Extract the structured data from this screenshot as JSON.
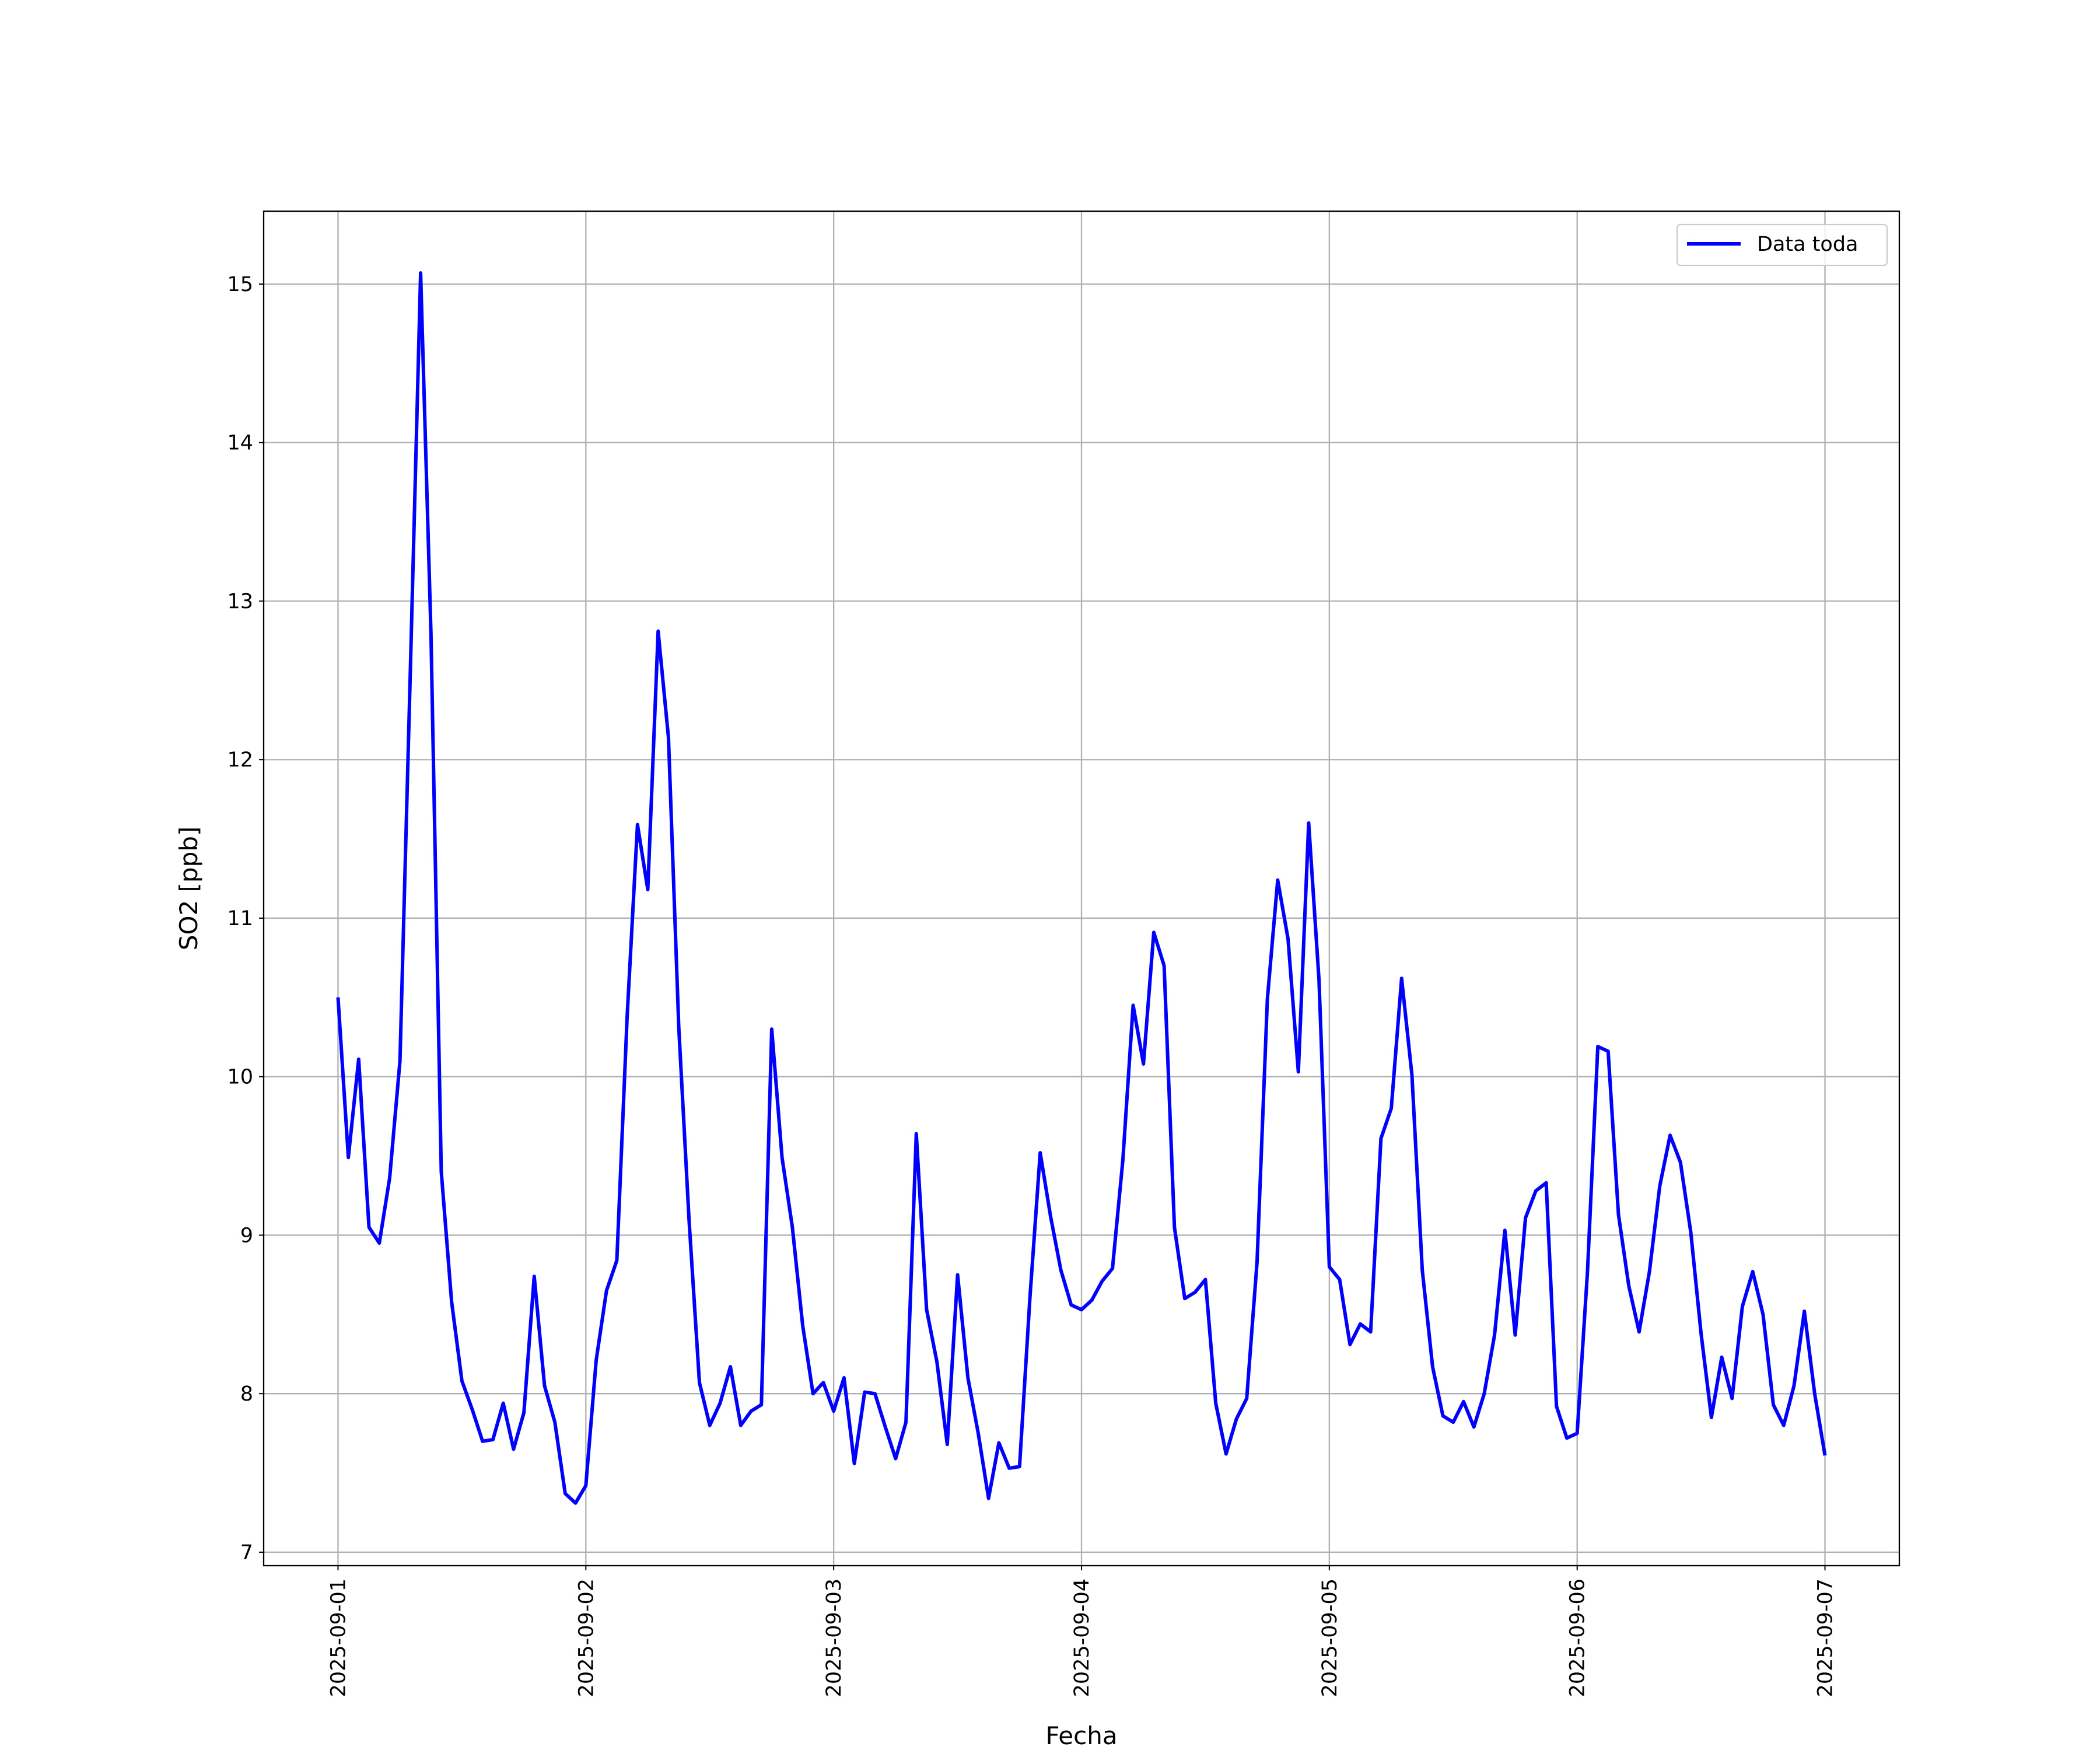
{
  "chart_data": {
    "type": "line",
    "title": null,
    "x_label": "Fecha",
    "y_label": "SO2 [ppb]",
    "x": [
      "2025-09-01 00:00",
      "2025-09-01 01:00",
      "2025-09-01 02:00",
      "2025-09-01 03:00",
      "2025-09-01 04:00",
      "2025-09-01 05:00",
      "2025-09-01 06:00",
      "2025-09-01 07:00",
      "2025-09-01 08:00",
      "2025-09-01 09:00",
      "2025-09-01 10:00",
      "2025-09-01 11:00",
      "2025-09-01 12:00",
      "2025-09-01 13:00",
      "2025-09-01 14:00",
      "2025-09-01 15:00",
      "2025-09-01 16:00",
      "2025-09-01 17:00",
      "2025-09-01 18:00",
      "2025-09-01 19:00",
      "2025-09-01 20:00",
      "2025-09-01 21:00",
      "2025-09-01 22:00",
      "2025-09-01 23:00",
      "2025-09-02 00:00",
      "2025-09-02 01:00",
      "2025-09-02 02:00",
      "2025-09-02 03:00",
      "2025-09-02 04:00",
      "2025-09-02 05:00",
      "2025-09-02 06:00",
      "2025-09-02 07:00",
      "2025-09-02 08:00",
      "2025-09-02 09:00",
      "2025-09-02 10:00",
      "2025-09-02 11:00",
      "2025-09-02 12:00",
      "2025-09-02 13:00",
      "2025-09-02 14:00",
      "2025-09-02 15:00",
      "2025-09-02 16:00",
      "2025-09-02 17:00",
      "2025-09-02 18:00",
      "2025-09-02 19:00",
      "2025-09-02 20:00",
      "2025-09-02 21:00",
      "2025-09-02 22:00",
      "2025-09-02 23:00",
      "2025-09-03 00:00",
      "2025-09-03 01:00",
      "2025-09-03 02:00",
      "2025-09-03 03:00",
      "2025-09-03 04:00",
      "2025-09-03 05:00",
      "2025-09-03 06:00",
      "2025-09-03 07:00",
      "2025-09-03 08:00",
      "2025-09-03 09:00",
      "2025-09-03 10:00",
      "2025-09-03 11:00",
      "2025-09-03 12:00",
      "2025-09-03 13:00",
      "2025-09-03 14:00",
      "2025-09-03 15:00",
      "2025-09-03 16:00",
      "2025-09-03 17:00",
      "2025-09-03 18:00",
      "2025-09-03 19:00",
      "2025-09-03 20:00",
      "2025-09-03 21:00",
      "2025-09-03 22:00",
      "2025-09-03 23:00",
      "2025-09-04 00:00",
      "2025-09-04 01:00",
      "2025-09-04 02:00",
      "2025-09-04 03:00",
      "2025-09-04 04:00",
      "2025-09-04 05:00",
      "2025-09-04 06:00",
      "2025-09-04 07:00",
      "2025-09-04 08:00",
      "2025-09-04 09:00",
      "2025-09-04 10:00",
      "2025-09-04 11:00",
      "2025-09-04 12:00",
      "2025-09-04 13:00",
      "2025-09-04 14:00",
      "2025-09-04 15:00",
      "2025-09-04 16:00",
      "2025-09-04 17:00",
      "2025-09-04 18:00",
      "2025-09-04 19:00",
      "2025-09-04 20:00",
      "2025-09-04 21:00",
      "2025-09-04 22:00",
      "2025-09-04 23:00",
      "2025-09-05 00:00",
      "2025-09-05 01:00",
      "2025-09-05 02:00",
      "2025-09-05 03:00",
      "2025-09-05 04:00",
      "2025-09-05 05:00",
      "2025-09-05 06:00",
      "2025-09-05 07:00",
      "2025-09-05 08:00",
      "2025-09-05 09:00",
      "2025-09-05 10:00",
      "2025-09-05 11:00",
      "2025-09-05 12:00",
      "2025-09-05 13:00",
      "2025-09-05 14:00",
      "2025-09-05 15:00",
      "2025-09-05 16:00",
      "2025-09-05 17:00",
      "2025-09-05 18:00",
      "2025-09-05 19:00",
      "2025-09-05 20:00",
      "2025-09-05 21:00",
      "2025-09-05 22:00",
      "2025-09-05 23:00",
      "2025-09-06 00:00",
      "2025-09-06 01:00",
      "2025-09-06 02:00",
      "2025-09-06 03:00",
      "2025-09-06 04:00",
      "2025-09-06 05:00",
      "2025-09-06 06:00",
      "2025-09-06 07:00",
      "2025-09-06 08:00",
      "2025-09-06 09:00",
      "2025-09-06 10:00",
      "2025-09-06 11:00",
      "2025-09-06 12:00",
      "2025-09-06 13:00",
      "2025-09-06 14:00",
      "2025-09-06 15:00",
      "2025-09-06 16:00",
      "2025-09-06 17:00",
      "2025-09-06 18:00",
      "2025-09-06 19:00",
      "2025-09-06 20:00",
      "2025-09-06 21:00",
      "2025-09-06 22:00",
      "2025-09-06 23:00",
      "2025-09-07 00:00"
    ],
    "series": [
      {
        "name": "Data toda",
        "color": "#0000ff",
        "values": [
          10.5,
          9.49,
          10.11,
          9.05,
          8.95,
          9.36,
          10.1,
          12.55,
          15.07,
          12.8,
          9.4,
          8.58,
          8.08,
          7.9,
          7.7,
          7.71,
          7.94,
          7.65,
          7.88,
          8.74,
          8.05,
          7.82,
          7.37,
          7.31,
          7.42,
          8.21,
          8.65,
          8.84,
          10.38,
          11.59,
          11.18,
          12.81,
          12.14,
          10.31,
          9.09,
          8.07,
          7.8,
          7.94,
          8.17,
          7.8,
          7.89,
          7.93,
          10.3,
          9.49,
          9.05,
          8.43,
          8.0,
          8.07,
          7.89,
          8.1,
          7.56,
          8.01,
          8.0,
          7.79,
          7.59,
          7.82,
          9.64,
          8.53,
          8.2,
          7.68,
          8.75,
          8.1,
          7.75,
          7.34,
          7.69,
          7.53,
          7.54,
          8.6,
          9.52,
          9.12,
          8.78,
          8.56,
          8.53,
          8.59,
          8.71,
          8.79,
          9.47,
          10.45,
          10.08,
          10.91,
          10.7,
          9.05,
          8.6,
          8.64,
          8.72,
          7.94,
          7.62,
          7.84,
          7.97,
          8.83,
          10.49,
          11.24,
          10.87,
          10.03,
          11.6,
          10.61,
          8.8,
          8.72,
          8.31,
          8.44,
          8.39,
          9.61,
          9.8,
          10.62,
          10.01,
          8.78,
          8.17,
          7.86,
          7.82,
          7.95,
          7.79,
          8.0,
          8.37,
          9.03,
          8.37,
          9.11,
          9.28,
          9.33,
          7.92,
          7.72,
          7.75,
          8.77,
          10.19,
          10.16,
          9.13,
          8.68,
          8.39,
          8.77,
          9.31,
          9.63,
          9.46,
          9.02,
          8.38,
          7.85,
          8.23,
          7.97,
          8.55,
          8.77,
          8.5,
          7.93,
          7.8,
          8.05,
          8.52,
          8.0,
          7.61
        ]
      }
    ],
    "xlim": [
      "2025-08-31 16:48",
      "2025-09-07 07:12"
    ],
    "xticks": [
      "2025-09-01",
      "2025-09-02",
      "2025-09-03",
      "2025-09-04",
      "2025-09-05",
      "2025-09-06",
      "2025-09-07"
    ],
    "ylim": [
      6.915,
      15.46
    ],
    "yticks": [
      7,
      8,
      9,
      10,
      11,
      12,
      13,
      14,
      15
    ],
    "grid": true,
    "legend": "upper right"
  }
}
